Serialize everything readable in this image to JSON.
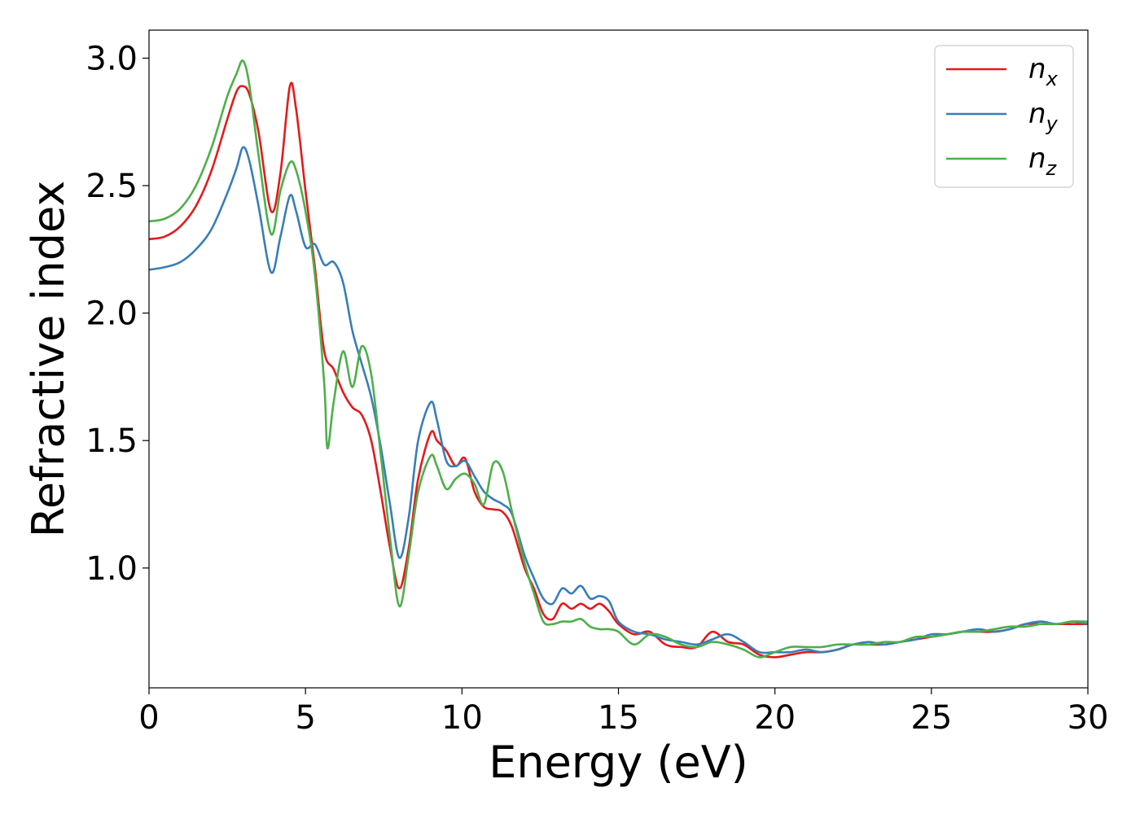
{
  "chart_data": {
    "type": "line",
    "title": "",
    "xlabel": "Energy (eV)",
    "ylabel": "Refractive index",
    "xlim": [
      0,
      30
    ],
    "ylim": [
      0.53,
      3.11
    ],
    "xticks": [
      0,
      5,
      10,
      15,
      20,
      25,
      30
    ],
    "yticks": [
      1.0,
      1.5,
      2.0,
      2.5,
      3.0
    ],
    "xtick_labels": [
      "0",
      "5",
      "10",
      "15",
      "20",
      "25",
      "30"
    ],
    "ytick_labels": [
      "1.0",
      "1.5",
      "2.0",
      "2.5",
      "3.0"
    ],
    "grid": false,
    "legend_position": "top-right",
    "series": [
      {
        "name": "n_x",
        "label_base": "n",
        "label_sub": "x",
        "color": "#e41a1c",
        "x": [
          0,
          0.5,
          1,
          1.5,
          2,
          2.5,
          2.8,
          3.0,
          3.2,
          3.5,
          3.9,
          4.2,
          4.5,
          4.7,
          5.0,
          5.3,
          5.6,
          5.9,
          6.2,
          6.5,
          6.8,
          7.1,
          7.4,
          7.7,
          8.0,
          8.3,
          8.6,
          9.0,
          9.2,
          9.5,
          9.8,
          10.1,
          10.4,
          10.7,
          11.0,
          11.3,
          11.6,
          12.0,
          12.3,
          12.6,
          12.9,
          13.2,
          13.5,
          13.8,
          14.1,
          14.4,
          14.7,
          15.0,
          15.5,
          16.0,
          16.5,
          17.0,
          17.5,
          18.0,
          18.5,
          19.0,
          19.5,
          20.0,
          20.5,
          21.0,
          21.5,
          22.0,
          22.5,
          23.0,
          23.5,
          24.0,
          24.5,
          25.0,
          25.5,
          26.0,
          26.5,
          27.0,
          27.5,
          28.0,
          28.5,
          29.0,
          29.5,
          30.0
        ],
        "y": [
          2.29,
          2.3,
          2.34,
          2.42,
          2.56,
          2.76,
          2.87,
          2.89,
          2.86,
          2.71,
          2.4,
          2.55,
          2.89,
          2.8,
          2.48,
          2.18,
          1.85,
          1.78,
          1.69,
          1.63,
          1.6,
          1.5,
          1.3,
          1.08,
          0.92,
          1.08,
          1.35,
          1.53,
          1.5,
          1.46,
          1.4,
          1.43,
          1.3,
          1.24,
          1.23,
          1.22,
          1.16,
          1.0,
          0.92,
          0.82,
          0.8,
          0.86,
          0.84,
          0.86,
          0.84,
          0.86,
          0.83,
          0.78,
          0.74,
          0.75,
          0.7,
          0.69,
          0.69,
          0.75,
          0.71,
          0.7,
          0.66,
          0.65,
          0.66,
          0.67,
          0.67,
          0.68,
          0.7,
          0.7,
          0.7,
          0.71,
          0.72,
          0.73,
          0.74,
          0.75,
          0.75,
          0.75,
          0.76,
          0.78,
          0.78,
          0.78,
          0.78,
          0.78
        ]
      },
      {
        "name": "n_y",
        "label_base": "n",
        "label_sub": "y",
        "color": "#377eb8",
        "x": [
          0,
          0.5,
          1,
          1.5,
          2,
          2.5,
          2.8,
          3.0,
          3.2,
          3.5,
          3.9,
          4.2,
          4.5,
          4.7,
          5.0,
          5.3,
          5.6,
          5.9,
          6.2,
          6.5,
          6.8,
          7.1,
          7.4,
          7.7,
          8.0,
          8.3,
          8.6,
          9.0,
          9.2,
          9.5,
          9.8,
          10.1,
          10.4,
          10.7,
          11.0,
          11.3,
          11.6,
          12.0,
          12.3,
          12.6,
          12.9,
          13.2,
          13.5,
          13.8,
          14.1,
          14.4,
          14.7,
          15.0,
          15.5,
          16.0,
          16.5,
          17.0,
          17.5,
          18.0,
          18.5,
          19.0,
          19.5,
          20.0,
          20.5,
          21.0,
          21.5,
          22.0,
          22.5,
          23.0,
          23.5,
          24.0,
          24.5,
          25.0,
          25.5,
          26.0,
          26.5,
          27.0,
          27.5,
          28.0,
          28.5,
          29.0,
          29.5,
          30.0
        ],
        "y": [
          2.17,
          2.18,
          2.2,
          2.25,
          2.33,
          2.47,
          2.57,
          2.65,
          2.6,
          2.42,
          2.16,
          2.3,
          2.46,
          2.4,
          2.26,
          2.27,
          2.19,
          2.2,
          2.12,
          1.93,
          1.8,
          1.67,
          1.48,
          1.25,
          1.04,
          1.2,
          1.5,
          1.65,
          1.58,
          1.42,
          1.4,
          1.42,
          1.36,
          1.3,
          1.27,
          1.25,
          1.21,
          1.05,
          0.96,
          0.88,
          0.86,
          0.92,
          0.9,
          0.93,
          0.88,
          0.89,
          0.87,
          0.79,
          0.75,
          0.74,
          0.72,
          0.71,
          0.7,
          0.72,
          0.74,
          0.71,
          0.67,
          0.67,
          0.67,
          0.68,
          0.67,
          0.68,
          0.7,
          0.71,
          0.7,
          0.71,
          0.72,
          0.74,
          0.74,
          0.75,
          0.76,
          0.75,
          0.76,
          0.78,
          0.79,
          0.78,
          0.79,
          0.78
        ]
      },
      {
        "name": "n_z",
        "label_base": "n",
        "label_sub": "z",
        "color": "#4daf4a",
        "x": [
          0,
          0.5,
          1,
          1.5,
          2,
          2.5,
          2.8,
          3.0,
          3.2,
          3.5,
          3.9,
          4.2,
          4.5,
          4.7,
          5.0,
          5.3,
          5.6,
          5.7,
          5.9,
          6.2,
          6.5,
          6.8,
          7.1,
          7.4,
          7.7,
          8.0,
          8.3,
          8.6,
          9.0,
          9.2,
          9.5,
          9.8,
          10.1,
          10.4,
          10.7,
          11.0,
          11.3,
          11.6,
          12.0,
          12.3,
          12.6,
          12.9,
          13.2,
          13.5,
          13.8,
          14.1,
          14.4,
          14.7,
          15.0,
          15.5,
          16.0,
          16.5,
          17.0,
          17.5,
          18.0,
          18.5,
          19.0,
          19.5,
          20.0,
          20.5,
          21.0,
          21.5,
          22.0,
          22.5,
          23.0,
          23.5,
          24.0,
          24.5,
          25.0,
          25.5,
          26.0,
          26.5,
          27.0,
          27.5,
          28.0,
          28.5,
          29.0,
          29.5,
          30.0
        ],
        "y": [
          2.36,
          2.37,
          2.41,
          2.5,
          2.65,
          2.85,
          2.94,
          2.99,
          2.9,
          2.62,
          2.31,
          2.48,
          2.59,
          2.56,
          2.4,
          2.15,
          1.72,
          1.47,
          1.65,
          1.85,
          1.71,
          1.87,
          1.76,
          1.45,
          1.12,
          0.85,
          1.05,
          1.3,
          1.44,
          1.4,
          1.31,
          1.35,
          1.37,
          1.33,
          1.25,
          1.41,
          1.38,
          1.22,
          1.02,
          0.9,
          0.79,
          0.78,
          0.79,
          0.79,
          0.8,
          0.77,
          0.76,
          0.76,
          0.75,
          0.7,
          0.74,
          0.73,
          0.7,
          0.69,
          0.71,
          0.7,
          0.68,
          0.65,
          0.67,
          0.69,
          0.69,
          0.69,
          0.7,
          0.7,
          0.7,
          0.71,
          0.71,
          0.73,
          0.73,
          0.74,
          0.75,
          0.75,
          0.76,
          0.77,
          0.77,
          0.78,
          0.78,
          0.79,
          0.79
        ]
      }
    ]
  }
}
